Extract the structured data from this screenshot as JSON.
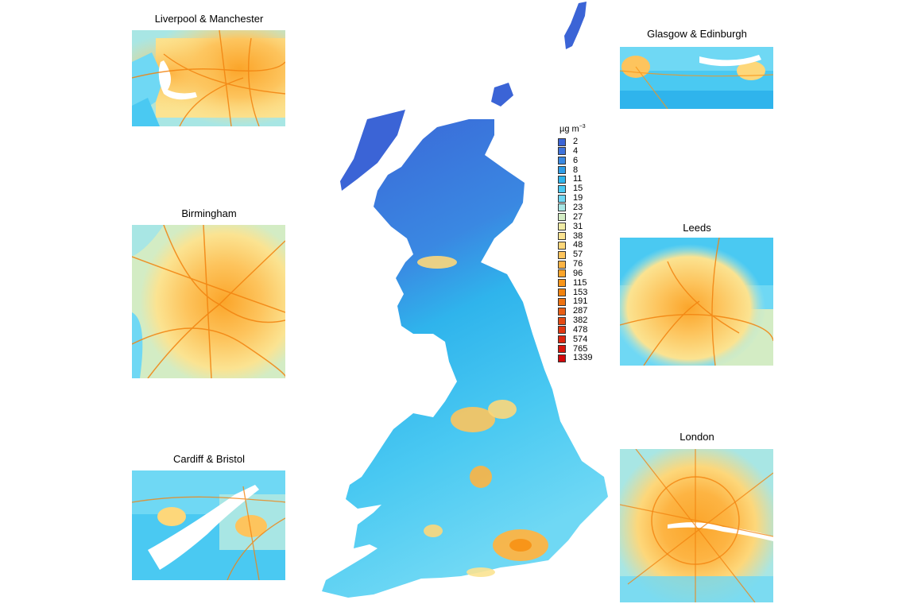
{
  "insets": [
    {
      "id": "liverpool-manchester",
      "title": "Liverpool & Manchester"
    },
    {
      "id": "birmingham",
      "title": "Birmingham"
    },
    {
      "id": "cardiff-bristol",
      "title": "Cardiff & Bristol"
    },
    {
      "id": "glasgow-edinburgh",
      "title": "Glasgow & Edinburgh"
    },
    {
      "id": "leeds",
      "title": "Leeds"
    },
    {
      "id": "london",
      "title": "London"
    }
  ],
  "legend": {
    "unit_prefix": "µg m",
    "unit_exponent": "−3",
    "entries": [
      {
        "label": "2",
        "color": "#3b64d6"
      },
      {
        "label": "4",
        "color": "#3f73dc"
      },
      {
        "label": "6",
        "color": "#3a88e2"
      },
      {
        "label": "8",
        "color": "#2f9ce6"
      },
      {
        "label": "11",
        "color": "#2fb4ec"
      },
      {
        "label": "15",
        "color": "#4ac9f2"
      },
      {
        "label": "19",
        "color": "#6fd8f4"
      },
      {
        "label": "23",
        "color": "#a8e6e4"
      },
      {
        "label": "27",
        "color": "#d3ecc4"
      },
      {
        "label": "31",
        "color": "#f1eca6"
      },
      {
        "label": "38",
        "color": "#fbe391"
      },
      {
        "label": "48",
        "color": "#fdd77a"
      },
      {
        "label": "57",
        "color": "#fdc45d"
      },
      {
        "label": "76",
        "color": "#fdb443"
      },
      {
        "label": "96",
        "color": "#fba52a"
      },
      {
        "label": "115",
        "color": "#f89519"
      },
      {
        "label": "153",
        "color": "#f2830f"
      },
      {
        "label": "191",
        "color": "#ed7212"
      },
      {
        "label": "287",
        "color": "#e85e16"
      },
      {
        "label": "382",
        "color": "#e44a14"
      },
      {
        "label": "478",
        "color": "#e03712"
      },
      {
        "label": "574",
        "color": "#dc2510"
      },
      {
        "label": "765",
        "color": "#d7150d"
      },
      {
        "label": "1339",
        "color": "#d2070a"
      }
    ]
  }
}
